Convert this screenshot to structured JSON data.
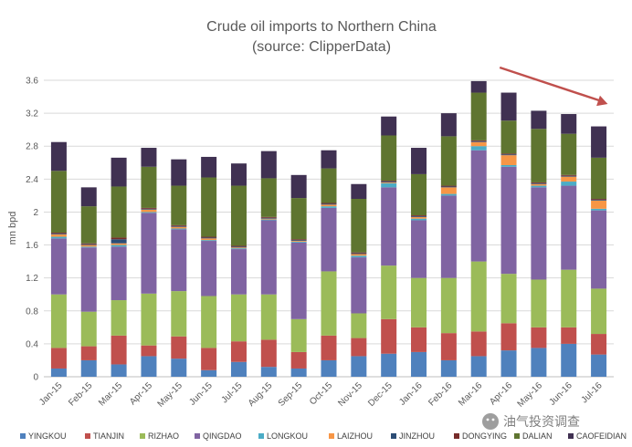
{
  "chart_data": {
    "type": "bar",
    "stacked": true,
    "title": "Crude oil imports to Northern China",
    "subtitle": "(source: ClipperData)",
    "ylabel": "mn bpd",
    "ylim": [
      0,
      3.6
    ],
    "yticks": [
      "0",
      "0.4",
      "0.8",
      "1.2",
      "1.6",
      "2",
      "2.4",
      "2.8",
      "3.2",
      "3.6"
    ],
    "grid": true,
    "legend_position": "bottom",
    "categories": [
      "Jan-15",
      "Feb-15",
      "Mar-15",
      "Apr-15",
      "May-15",
      "Jun-15",
      "Jul-15",
      "Aug-15",
      "Sep-15",
      "Oct-15",
      "Nov-15",
      "Dec-15",
      "Jan-16",
      "Feb-16",
      "Mar-16",
      "Apr-16",
      "May-16",
      "Jun-16",
      "Jul-16"
    ],
    "series": [
      {
        "name": "YINGKOU",
        "color": "#4f81bd",
        "values": [
          0.1,
          0.2,
          0.15,
          0.25,
          0.22,
          0.08,
          0.18,
          0.12,
          0.1,
          0.2,
          0.25,
          0.28,
          0.3,
          0.2,
          0.25,
          0.32,
          0.35,
          0.4,
          0.27
        ]
      },
      {
        "name": "TIANJIN",
        "color": "#c0504d",
        "values": [
          0.25,
          0.17,
          0.35,
          0.13,
          0.27,
          0.27,
          0.25,
          0.33,
          0.2,
          0.3,
          0.22,
          0.42,
          0.3,
          0.33,
          0.3,
          0.33,
          0.25,
          0.2,
          0.25
        ]
      },
      {
        "name": "RIZHAO",
        "color": "#9bbb59",
        "values": [
          0.65,
          0.42,
          0.43,
          0.63,
          0.55,
          0.63,
          0.57,
          0.55,
          0.4,
          0.78,
          0.3,
          0.65,
          0.6,
          0.67,
          0.85,
          0.6,
          0.58,
          0.7,
          0.55
        ]
      },
      {
        "name": "QINGDAO",
        "color": "#8064a2",
        "values": [
          0.68,
          0.78,
          0.65,
          0.98,
          0.75,
          0.67,
          0.55,
          0.9,
          0.93,
          0.77,
          0.68,
          0.95,
          0.7,
          1.0,
          1.35,
          1.3,
          1.12,
          1.02,
          0.95
        ]
      },
      {
        "name": "LONGKOU",
        "color": "#4bacc6",
        "values": [
          0.02,
          0.01,
          0.02,
          0.01,
          0.01,
          0.01,
          0.01,
          0.01,
          0.01,
          0.02,
          0.02,
          0.05,
          0.02,
          0.02,
          0.05,
          0.02,
          0.02,
          0.05,
          0.02
        ]
      },
      {
        "name": "LAIZHOU",
        "color": "#f79646",
        "values": [
          0.03,
          0.02,
          0.02,
          0.03,
          0.02,
          0.02,
          0.01,
          0.01,
          0.01,
          0.02,
          0.02,
          0.01,
          0.02,
          0.08,
          0.05,
          0.12,
          0.02,
          0.06,
          0.1
        ]
      },
      {
        "name": "JINZHOU",
        "color": "#2c4d75",
        "values": [
          0.01,
          0.01,
          0.05,
          0.01,
          0.01,
          0.01,
          0.01,
          0.01,
          0.01,
          0.01,
          0.01,
          0.01,
          0.01,
          0.01,
          0.01,
          0.01,
          0.01,
          0.01,
          0.01
        ]
      },
      {
        "name": "DONGYING",
        "color": "#772c2a",
        "values": [
          0.01,
          0.01,
          0.02,
          0.01,
          0.01,
          0.01,
          0.01,
          0.01,
          0.01,
          0.01,
          0.01,
          0.01,
          0.01,
          0.01,
          0.01,
          0.01,
          0.01,
          0.01,
          0.01
        ]
      },
      {
        "name": "DALIAN",
        "color": "#5f7530",
        "values": [
          0.75,
          0.45,
          0.62,
          0.5,
          0.48,
          0.72,
          0.73,
          0.47,
          0.5,
          0.42,
          0.65,
          0.55,
          0.5,
          0.6,
          0.58,
          0.4,
          0.65,
          0.5,
          0.5
        ]
      },
      {
        "name": "CAOFEIDIAN",
        "color": "#403152",
        "values": [
          0.35,
          0.23,
          0.35,
          0.23,
          0.32,
          0.25,
          0.27,
          0.33,
          0.28,
          0.22,
          0.18,
          0.23,
          0.32,
          0.28,
          0.14,
          0.34,
          0.22,
          0.24,
          0.38
        ]
      }
    ],
    "annotations": [
      {
        "type": "arrow",
        "color": "#c0504d",
        "from_category": "Apr-16",
        "to_category": "Jul-16",
        "direction": "downward"
      }
    ]
  },
  "watermark": {
    "text": "油气投资调查",
    "icon": "wechat-icon"
  }
}
